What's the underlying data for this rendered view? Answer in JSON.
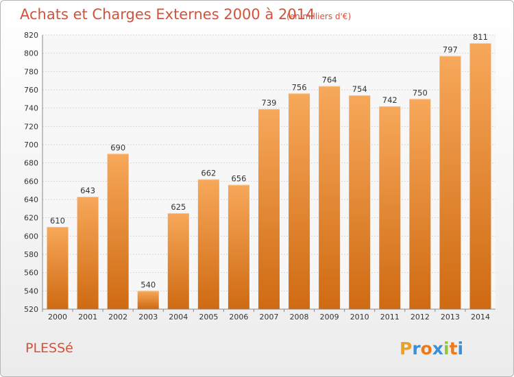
{
  "chart_data": {
    "type": "bar",
    "title": "Achats et Charges Externes 2000 à 2014",
    "subtitle": "(en milliers d'€)",
    "categories": [
      "2000",
      "2001",
      "2002",
      "2003",
      "2004",
      "2005",
      "2006",
      "2007",
      "2008",
      "2009",
      "2010",
      "2011",
      "2012",
      "2013",
      "2014"
    ],
    "values": [
      610,
      643,
      690,
      540,
      625,
      662,
      656,
      739,
      756,
      764,
      754,
      742,
      750,
      797,
      811
    ],
    "ylim": [
      520,
      820
    ],
    "yticks": [
      520,
      540,
      560,
      580,
      600,
      620,
      640,
      660,
      680,
      700,
      720,
      740,
      760,
      780,
      800,
      820
    ],
    "grid": true,
    "bar_color": "#f08a2c"
  },
  "place_name": "PLESSé",
  "logo": {
    "letters": [
      "P",
      "r",
      "o",
      "x",
      "i",
      "t",
      "i"
    ],
    "colors": [
      "#f0a020",
      "#3a8fd8",
      "#f07818",
      "#3a8fd8",
      "#8cc83c",
      "#f07818",
      "#3a8fd8"
    ]
  }
}
